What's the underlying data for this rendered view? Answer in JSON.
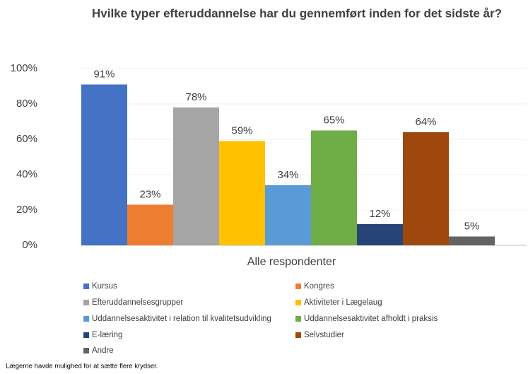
{
  "chart_data": {
    "type": "bar",
    "title": "Hvilke typer efteruddannelse har du gennemført inden for det sidste år?",
    "categories": [
      "Alle respondenter"
    ],
    "series": [
      {
        "name": "Kursus",
        "color": "#4472c4",
        "values": [
          91
        ],
        "value_labels": [
          "91%"
        ]
      },
      {
        "name": "Kongres",
        "color": "#ed7d31",
        "values": [
          23
        ],
        "value_labels": [
          "23%"
        ]
      },
      {
        "name": "Efteruddannelsesgrupper",
        "color": "#a5a5a5",
        "values": [
          78
        ],
        "value_labels": [
          "78%"
        ]
      },
      {
        "name": "Aktiviteter i Lægelaug",
        "color": "#ffc000",
        "values": [
          59
        ],
        "value_labels": [
          "59%"
        ]
      },
      {
        "name": "Uddannelsesaktivitet i relation til kvalitetsudvikling",
        "color": "#5b9bd5",
        "values": [
          34
        ],
        "value_labels": [
          "34%"
        ]
      },
      {
        "name": "Uddannelsesaktivitet afholdt i praksis",
        "color": "#70ad47",
        "values": [
          65
        ],
        "value_labels": [
          "65%"
        ]
      },
      {
        "name": "E-læring",
        "color": "#264478",
        "values": [
          12
        ],
        "value_labels": [
          "12%"
        ]
      },
      {
        "name": "Selvstudier",
        "color": "#9e480e",
        "values": [
          64
        ],
        "value_labels": [
          "64%"
        ]
      },
      {
        "name": "Andre",
        "color": "#636363",
        "values": [
          5
        ],
        "value_labels": [
          "5%"
        ]
      }
    ],
    "ylim": [
      0,
      100
    ],
    "yticks": [
      {
        "value": 0,
        "label": "0%"
      },
      {
        "value": 20,
        "label": "20%"
      },
      {
        "value": 40,
        "label": "40%"
      },
      {
        "value": 60,
        "label": "60%"
      },
      {
        "value": 80,
        "label": "80%"
      },
      {
        "value": 100,
        "label": "100%"
      }
    ],
    "grid": true,
    "legend": "bottom",
    "footnote": "Lægerne havde mulighed for at sætte flere krydser."
  }
}
